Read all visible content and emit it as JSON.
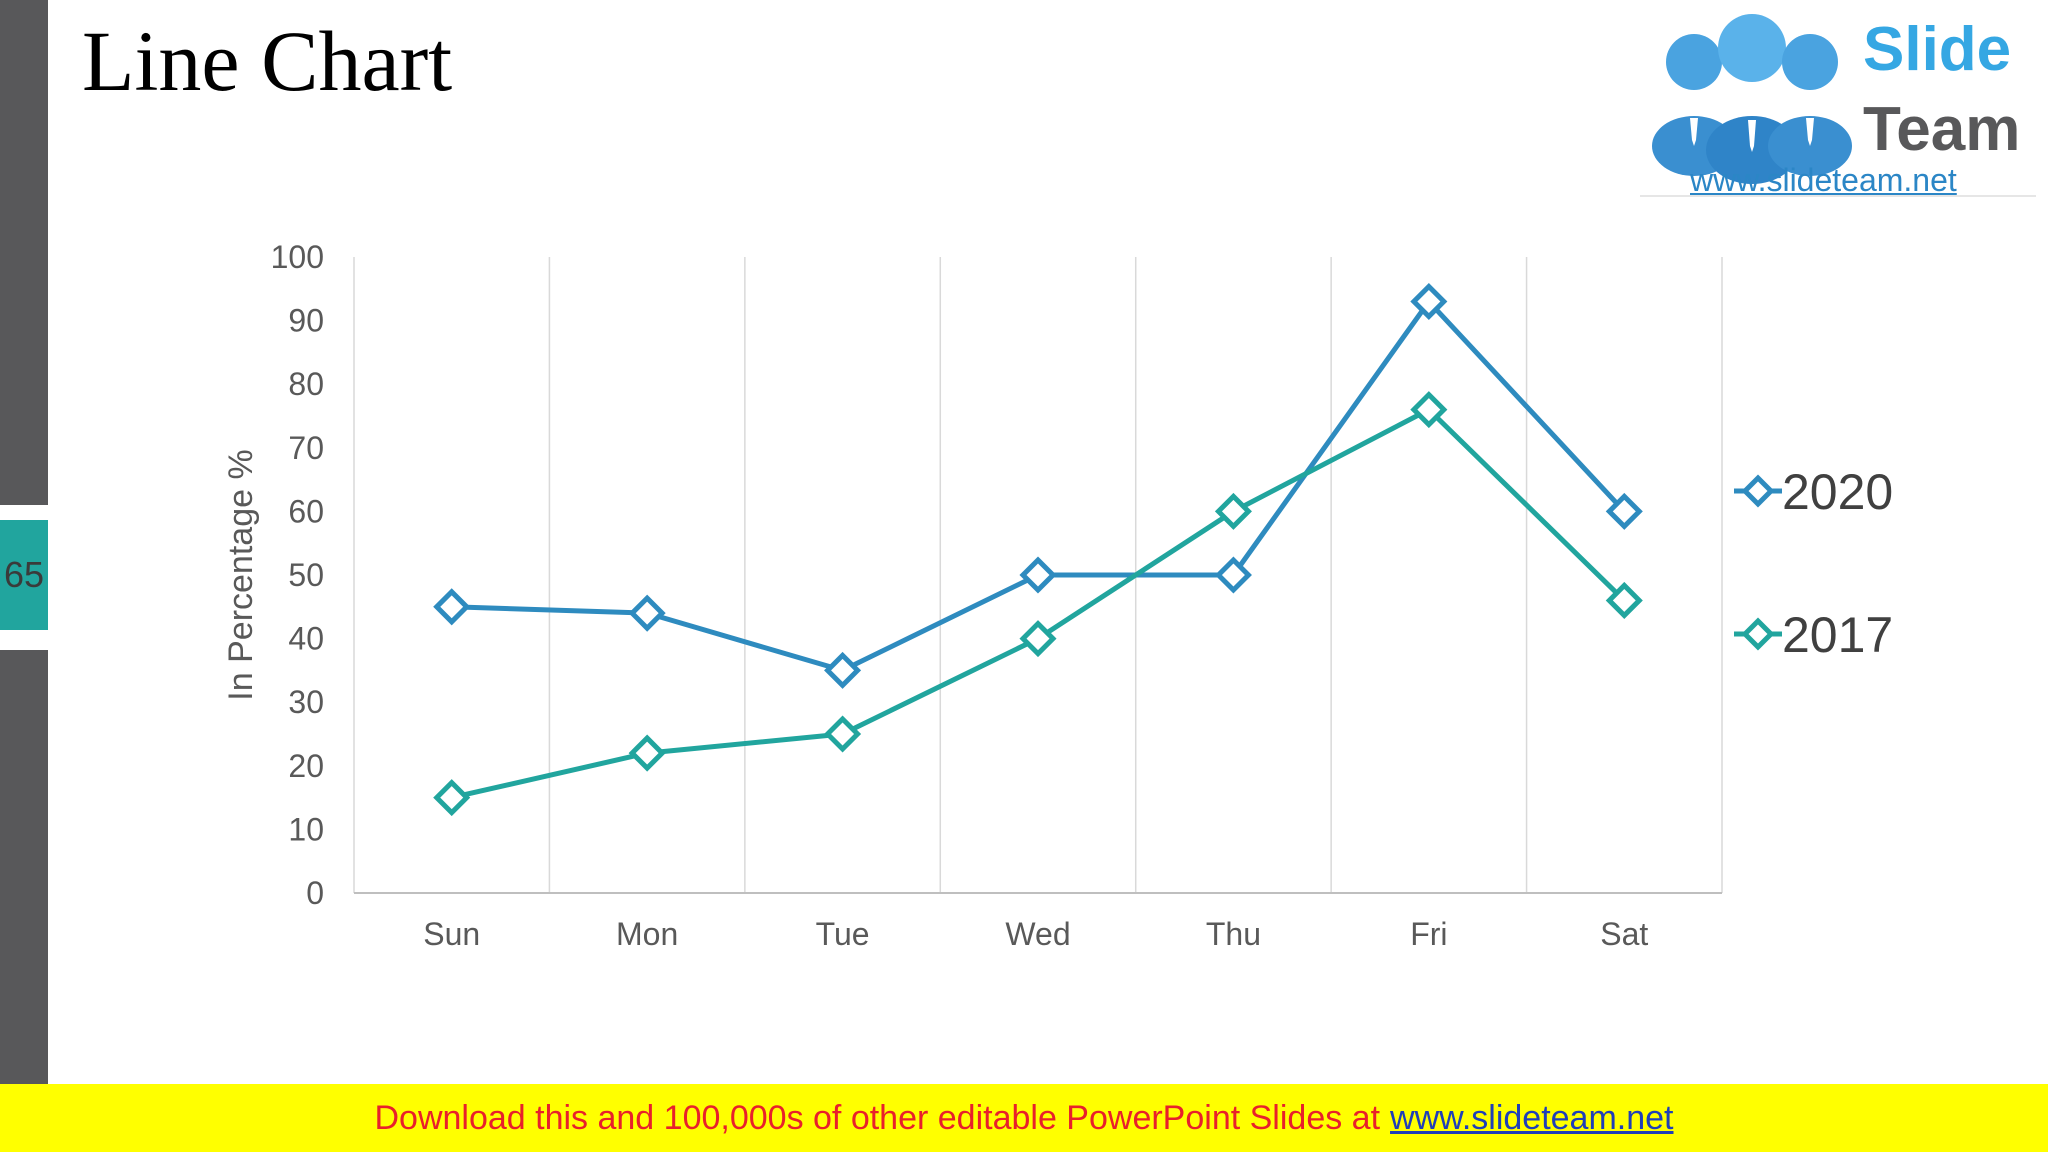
{
  "slide": {
    "title": "Line Chart",
    "number": "65"
  },
  "logo": {
    "word1": "Slide",
    "word2": "Team",
    "url": "www.slideteam.net"
  },
  "footer": {
    "text": "Download this and 100,000s of other editable PowerPoint Slides at",
    "link": "www.slideteam.net"
  },
  "colors": {
    "sidebar": "#58585a",
    "slide_number_bg": "#21a59e",
    "series_2020": "#2e8bbf",
    "series_2017": "#21a59e",
    "footer_bg": "#ffff00",
    "footer_text": "#e8202b",
    "footer_link": "#1f3fb8"
  },
  "chart_data": {
    "type": "line",
    "title": "",
    "xlabel": "",
    "ylabel": "In Percentage %",
    "categories": [
      "Sun",
      "Mon",
      "Tue",
      "Wed",
      "Thu",
      "Fri",
      "Sat"
    ],
    "yticks": [
      "0",
      "10",
      "20",
      "30",
      "40",
      "50",
      "60",
      "70",
      "80",
      "90",
      "100"
    ],
    "ylim": [
      0,
      100
    ],
    "grid": "vertical",
    "legend_position": "right",
    "marker": "diamond",
    "series": [
      {
        "name": "2020",
        "color": "#2e8bbf",
        "values": [
          45,
          44,
          35,
          50,
          50,
          93,
          60
        ]
      },
      {
        "name": "2017",
        "color": "#21a59e",
        "values": [
          15,
          22,
          25,
          40,
          60,
          76,
          46
        ]
      }
    ]
  }
}
